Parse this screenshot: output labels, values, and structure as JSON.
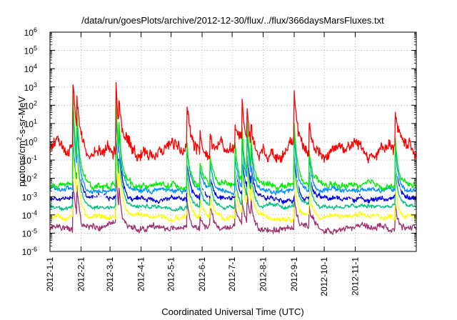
{
  "chart_data": {
    "type": "line",
    "title": "/data/run/goesPlots/archive/2012-12-30/flux/../flux/366daysMarsFluxes.txt",
    "xlabel": "Coordinated Universal Time (UTC)",
    "ylabel_parts": [
      "protons/cm",
      "2",
      "-s-sr-MeV"
    ],
    "yscale": "log",
    "ylim_exponents": [
      -6,
      6
    ],
    "y_tick_labels": [
      {
        "exp": -6,
        "base": "10",
        "sup": "-6"
      },
      {
        "exp": -5,
        "base": "10",
        "sup": "-5"
      },
      {
        "exp": -4,
        "base": "10",
        "sup": "-4"
      },
      {
        "exp": -3,
        "base": "10",
        "sup": "-3"
      },
      {
        "exp": -2,
        "base": "10",
        "sup": "-2"
      },
      {
        "exp": -1,
        "base": "10",
        "sup": "-1"
      },
      {
        "exp": 0,
        "base": "10",
        "sup": "0"
      },
      {
        "exp": 1,
        "base": "10",
        "sup": "1"
      },
      {
        "exp": 2,
        "base": "10",
        "sup": "2"
      },
      {
        "exp": 3,
        "base": "10",
        "sup": "3"
      },
      {
        "exp": 4,
        "base": "10",
        "sup": "4"
      },
      {
        "exp": 5,
        "base": "10",
        "sup": "5"
      },
      {
        "exp": 6,
        "base": "10",
        "sup": "6"
      }
    ],
    "xlim_days": [
      0,
      366
    ],
    "x_ticks": [
      {
        "day": 0,
        "label": "2012-1-1"
      },
      {
        "day": 31,
        "label": "2012-2-1"
      },
      {
        "day": 60,
        "label": "2012-3-1"
      },
      {
        "day": 91,
        "label": "2012-4-1"
      },
      {
        "day": 121,
        "label": "2012-5-1"
      },
      {
        "day": 152,
        "label": "2012-6-1"
      },
      {
        "day": 182,
        "label": "2012-7-1"
      },
      {
        "day": 213,
        "label": "2012-8-1"
      },
      {
        "day": 244,
        "label": "2012-9-1"
      },
      {
        "day": 274,
        "label": "2012-10-1"
      },
      {
        "day": 305,
        "label": "2012-11-1"
      }
    ],
    "grid": true,
    "events": [
      {
        "day": 23,
        "amp": 3.6
      },
      {
        "day": 27,
        "amp": 3.0
      },
      {
        "day": 66,
        "amp": 3.6
      },
      {
        "day": 69,
        "amp": 2.8
      },
      {
        "day": 137,
        "amp": 1.8
      },
      {
        "day": 150,
        "amp": 1.0
      },
      {
        "day": 160,
        "amp": 1.2
      },
      {
        "day": 185,
        "amp": 1.6
      },
      {
        "day": 192,
        "amp": 2.3
      },
      {
        "day": 197,
        "amp": 2.5
      },
      {
        "day": 201,
        "amp": 1.8
      },
      {
        "day": 244,
        "amp": 2.5
      },
      {
        "day": 259,
        "amp": 1.5
      },
      {
        "day": 345,
        "amp": 1.8
      }
    ],
    "series": [
      {
        "key": "s1",
        "color": "#ff0000",
        "base_log10": -0.4,
        "noise": 0.3
      },
      {
        "key": "s2",
        "color": "#00ee00",
        "base_log10": -2.4,
        "noise": 0.15
      },
      {
        "key": "s3",
        "color": "#0090ff",
        "base_log10": -2.65,
        "noise": 0.12
      },
      {
        "key": "s4",
        "color": "#ffffff",
        "base_log10": -2.85,
        "noise": 0.1
      },
      {
        "key": "s5",
        "color": "#0000ee",
        "base_log10": -3.1,
        "noise": 0.12
      },
      {
        "key": "s6",
        "color": "#00c080",
        "base_log10": -3.55,
        "noise": 0.1
      },
      {
        "key": "s7",
        "color": "#ffff00",
        "base_log10": -4.1,
        "noise": 0.12
      },
      {
        "key": "s8",
        "color": "#a03070",
        "base_log10": -4.7,
        "noise": 0.15
      }
    ]
  }
}
